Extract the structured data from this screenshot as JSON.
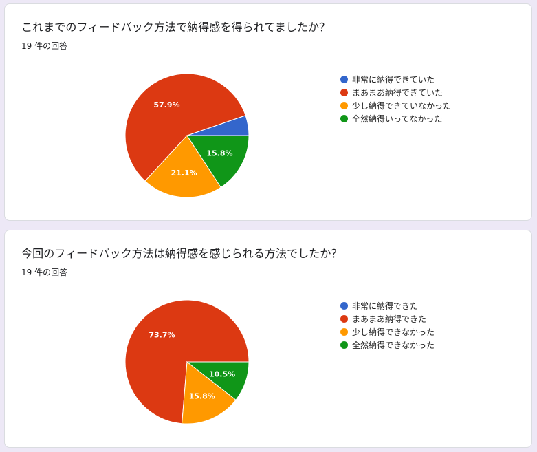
{
  "chart_data": [
    {
      "type": "pie",
      "title": "これまでのフィードバック方法で納得感を得られてましたか？",
      "response_count": "19 件の回答",
      "categories": [
        "非常に納得できていた",
        "まあまあ納得できていた",
        "少し納得できていなかった",
        "全然納得いってなかった"
      ],
      "values": [
        1,
        11,
        4,
        3
      ],
      "value_labels": [
        "",
        "57.9%",
        "21.1%",
        "15.8%"
      ],
      "colors": [
        "#3366cc",
        "#dc3912",
        "#ff9900",
        "#109618"
      ],
      "legend_position": "right"
    },
    {
      "type": "pie",
      "title": "今回のフィードバック方法は納得感を感じられる方法でしたか？",
      "response_count": "19 件の回答",
      "categories": [
        "非常に納得できた",
        "まあまあ納得できた",
        "少し納得できなかった",
        "全然納得できなかった"
      ],
      "values": [
        0,
        14,
        3,
        2
      ],
      "value_labels": [
        "",
        "73.7%",
        "15.8%",
        "10.5%"
      ],
      "colors": [
        "#3366cc",
        "#dc3912",
        "#ff9900",
        "#109618"
      ],
      "legend_position": "right"
    }
  ]
}
